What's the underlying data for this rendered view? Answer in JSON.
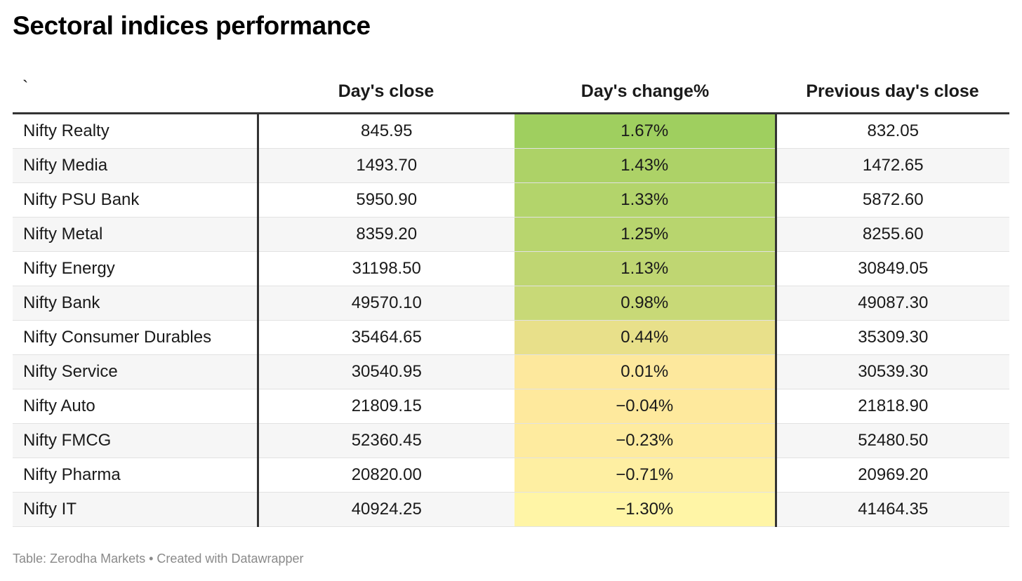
{
  "title": "Sectoral indices performance",
  "footer": "Table: Zerodha Markets • Created with Datawrapper",
  "colors": {
    "heat_high": "#9fcf5f",
    "heat_mid": "#e8e08a",
    "heat_low": "#fff5a6",
    "header_rule": "#333333"
  },
  "chart_data": {
    "type": "table",
    "title": "Sectoral indices performance",
    "columns": [
      "`",
      "Day's close",
      "Day's change%",
      "Previous day's close"
    ],
    "rows": [
      {
        "name": "Nifty Realty",
        "close": "845.95",
        "change": "1.67%",
        "change_value": 1.67,
        "prev": "832.05"
      },
      {
        "name": "Nifty Media",
        "close": "1493.70",
        "change": "1.43%",
        "change_value": 1.43,
        "prev": "1472.65"
      },
      {
        "name": "Nifty PSU Bank",
        "close": "5950.90",
        "change": "1.33%",
        "change_value": 1.33,
        "prev": "5872.60"
      },
      {
        "name": "Nifty Metal",
        "close": "8359.20",
        "change": "1.25%",
        "change_value": 1.25,
        "prev": "8255.60"
      },
      {
        "name": "Nifty Energy",
        "close": "31198.50",
        "change": "1.13%",
        "change_value": 1.13,
        "prev": "30849.05"
      },
      {
        "name": "Nifty Bank",
        "close": "49570.10",
        "change": "0.98%",
        "change_value": 0.98,
        "prev": "49087.30"
      },
      {
        "name": "Nifty Consumer Durables",
        "close": "35464.65",
        "change": "0.44%",
        "change_value": 0.44,
        "prev": "35309.30"
      },
      {
        "name": "Nifty Service",
        "close": "30540.95",
        "change": "0.01%",
        "change_value": 0.01,
        "prev": "30539.30"
      },
      {
        "name": "Nifty Auto",
        "close": "21809.15",
        "change": "−0.04%",
        "change_value": -0.04,
        "prev": "21818.90"
      },
      {
        "name": "Nifty FMCG",
        "close": "52360.45",
        "change": "−0.23%",
        "change_value": -0.23,
        "prev": "52480.50"
      },
      {
        "name": "Nifty Pharma",
        "close": "20820.00",
        "change": "−0.71%",
        "change_value": -0.71,
        "prev": "20969.20"
      },
      {
        "name": "Nifty IT",
        "close": "40924.25",
        "change": "−1.30%",
        "change_value": -1.3,
        "prev": "41464.35"
      }
    ]
  }
}
